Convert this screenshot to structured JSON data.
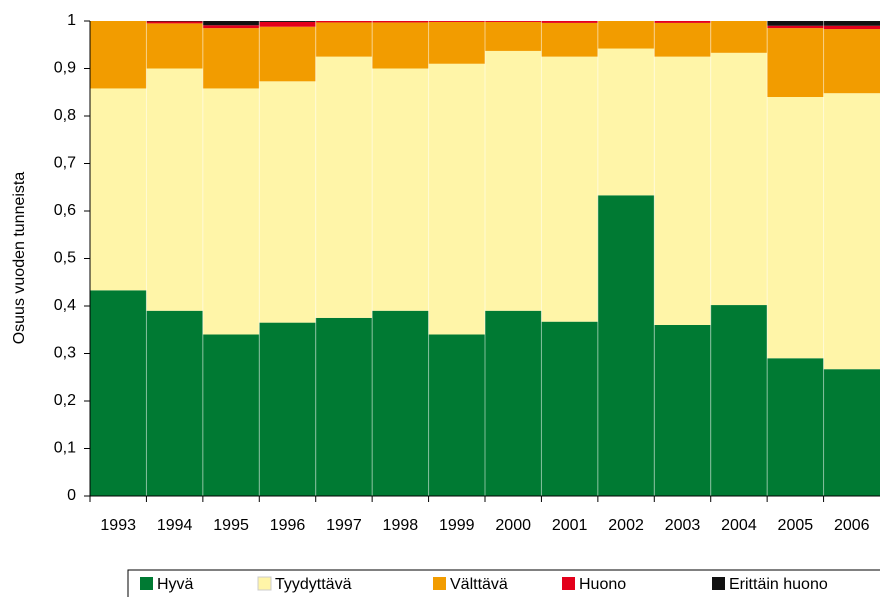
{
  "chart_data": {
    "type": "stacked_bar",
    "y_label": "Osuus vuoden tunneista",
    "categories": [
      "1993",
      "1994",
      "1995",
      "1996",
      "1997",
      "1998",
      "1999",
      "2000",
      "2001",
      "2002",
      "2003",
      "2004",
      "2005",
      "2006"
    ],
    "series": [
      {
        "name": "Hyvä",
        "color": "#007a33",
        "values": [
          0.433,
          0.39,
          0.34,
          0.365,
          0.375,
          0.39,
          0.34,
          0.39,
          0.367,
          0.633,
          0.36,
          0.402,
          0.29,
          0.267
        ]
      },
      {
        "name": "Tyydyttävä",
        "color": "#fff5a8",
        "values": [
          0.425,
          0.51,
          0.518,
          0.508,
          0.55,
          0.51,
          0.57,
          0.547,
          0.558,
          0.309,
          0.565,
          0.531,
          0.55,
          0.581
        ]
      },
      {
        "name": "Välttävä",
        "color": "#f29c00",
        "values": [
          0.142,
          0.095,
          0.127,
          0.115,
          0.072,
          0.097,
          0.088,
          0.061,
          0.071,
          0.058,
          0.071,
          0.067,
          0.145,
          0.135
        ]
      },
      {
        "name": "Huono",
        "color": "#e3001b",
        "values": [
          0,
          0.004,
          0.006,
          0.01,
          0.003,
          0.003,
          0.002,
          0.002,
          0.004,
          0,
          0.004,
          0,
          0.005,
          0.007
        ]
      },
      {
        "name": "Erittäin huono",
        "color": "#111111",
        "values": [
          0,
          0.001,
          0.009,
          0.002,
          0,
          0,
          0,
          0,
          0,
          0,
          0,
          0,
          0.01,
          0.01
        ]
      }
    ],
    "ylim": [
      0,
      1
    ],
    "yticks": [
      0,
      {
        "value": 0.1,
        "label": "0,1"
      },
      {
        "value": 0.2,
        "label": "0,2"
      },
      {
        "value": 0.3,
        "label": "0,3"
      },
      {
        "value": 0.4,
        "label": "0,4"
      },
      {
        "value": 0.5,
        "label": "0,5"
      },
      {
        "value": 0.6,
        "label": "0,6"
      },
      {
        "value": 0.7,
        "label": "0,7"
      },
      {
        "value": 0.8,
        "label": "0,8"
      },
      {
        "value": 0.9,
        "label": "0,9"
      },
      1
    ],
    "legend": "bottom"
  }
}
